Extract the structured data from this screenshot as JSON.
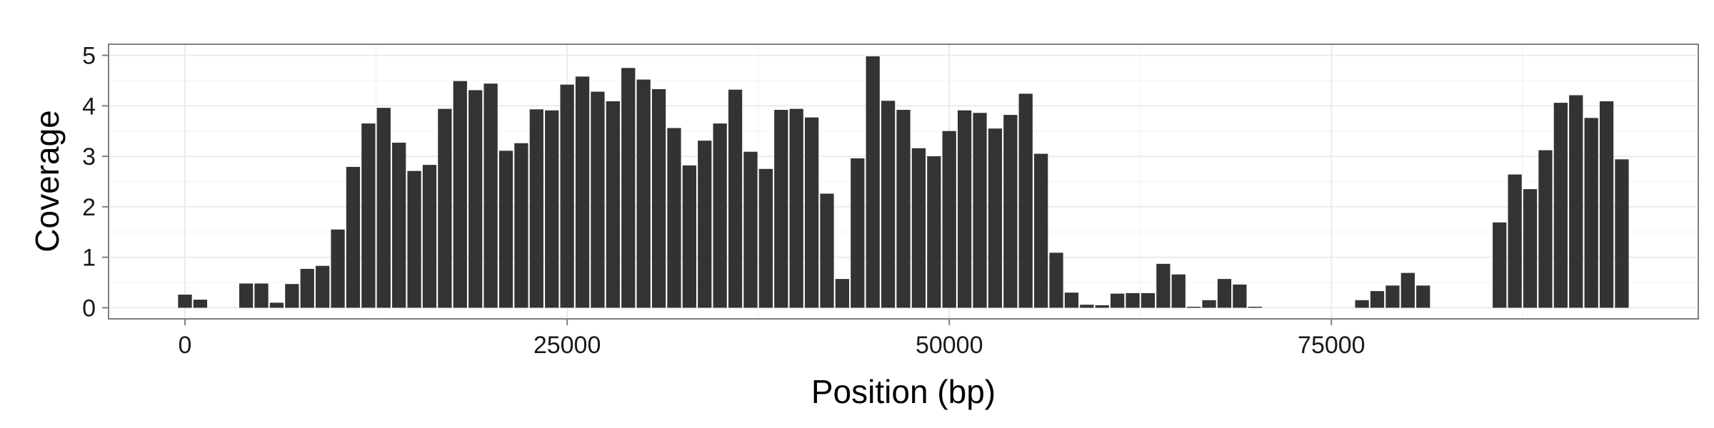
{
  "chart_data": {
    "type": "bar",
    "title": "",
    "xlabel": "Position (bp)",
    "ylabel": "Coverage",
    "xlim": [
      -5000,
      99000
    ],
    "ylim": [
      -0.22,
      5.22
    ],
    "bin_width": 1000,
    "x_ticks": [
      0,
      25000,
      50000,
      75000
    ],
    "x_tick_labels": [
      "0",
      "25000",
      "50000",
      "75000"
    ],
    "y_ticks": [
      0,
      1,
      2,
      3,
      4,
      5
    ],
    "y_tick_labels": [
      "0",
      "1",
      "2",
      "3",
      "4",
      "5"
    ],
    "grid": true,
    "legend": "none",
    "colors": {
      "bar": "#333333",
      "panel_border": "#7f7f7f",
      "grid_major": "#ebebeb",
      "grid_minor": "#f5f5f5"
    },
    "x": [
      0,
      1000,
      4000,
      5000,
      6000,
      7000,
      8000,
      9000,
      10000,
      11000,
      12000,
      13000,
      14000,
      15000,
      16000,
      17000,
      18000,
      19000,
      20000,
      21000,
      22000,
      23000,
      24000,
      25000,
      26000,
      27000,
      28000,
      29000,
      30000,
      31000,
      32000,
      33000,
      34000,
      35000,
      36000,
      37000,
      38000,
      39000,
      40000,
      41000,
      42000,
      43000,
      44000,
      45000,
      46000,
      47000,
      48000,
      49000,
      50000,
      51000,
      52000,
      53000,
      54000,
      55000,
      56000,
      57000,
      58000,
      59000,
      60000,
      61000,
      62000,
      63000,
      64000,
      65000,
      66000,
      67000,
      68000,
      69000,
      70000,
      77000,
      78000,
      79000,
      80000,
      81000,
      86000,
      87000,
      88000,
      89000,
      90000,
      91000,
      92000,
      93000,
      94000
    ],
    "values": [
      0.26,
      0.16,
      0.48,
      0.48,
      0.1,
      0.47,
      0.77,
      0.83,
      1.55,
      2.79,
      3.65,
      3.96,
      3.27,
      2.71,
      2.83,
      3.94,
      4.49,
      4.31,
      4.44,
      3.11,
      3.26,
      3.93,
      3.91,
      4.42,
      4.58,
      4.28,
      4.09,
      4.75,
      4.52,
      4.33,
      3.56,
      2.82,
      3.31,
      3.65,
      4.32,
      3.09,
      2.75,
      3.92,
      3.94,
      3.77,
      2.26,
      0.57,
      2.96,
      4.98,
      4.1,
      3.92,
      3.16,
      3.0,
      3.5,
      3.91,
      3.86,
      3.55,
      3.82,
      4.24,
      3.05,
      1.09,
      0.3,
      0.06,
      0.05,
      0.28,
      0.29,
      0.29,
      0.87,
      0.66,
      0.02,
      0.15,
      0.57,
      0.46,
      0.02,
      0.15,
      0.33,
      0.44,
      0.69,
      0.44,
      1.69,
      2.64,
      2.35,
      3.12,
      4.06,
      4.21,
      3.76,
      4.09,
      2.94
    ]
  }
}
